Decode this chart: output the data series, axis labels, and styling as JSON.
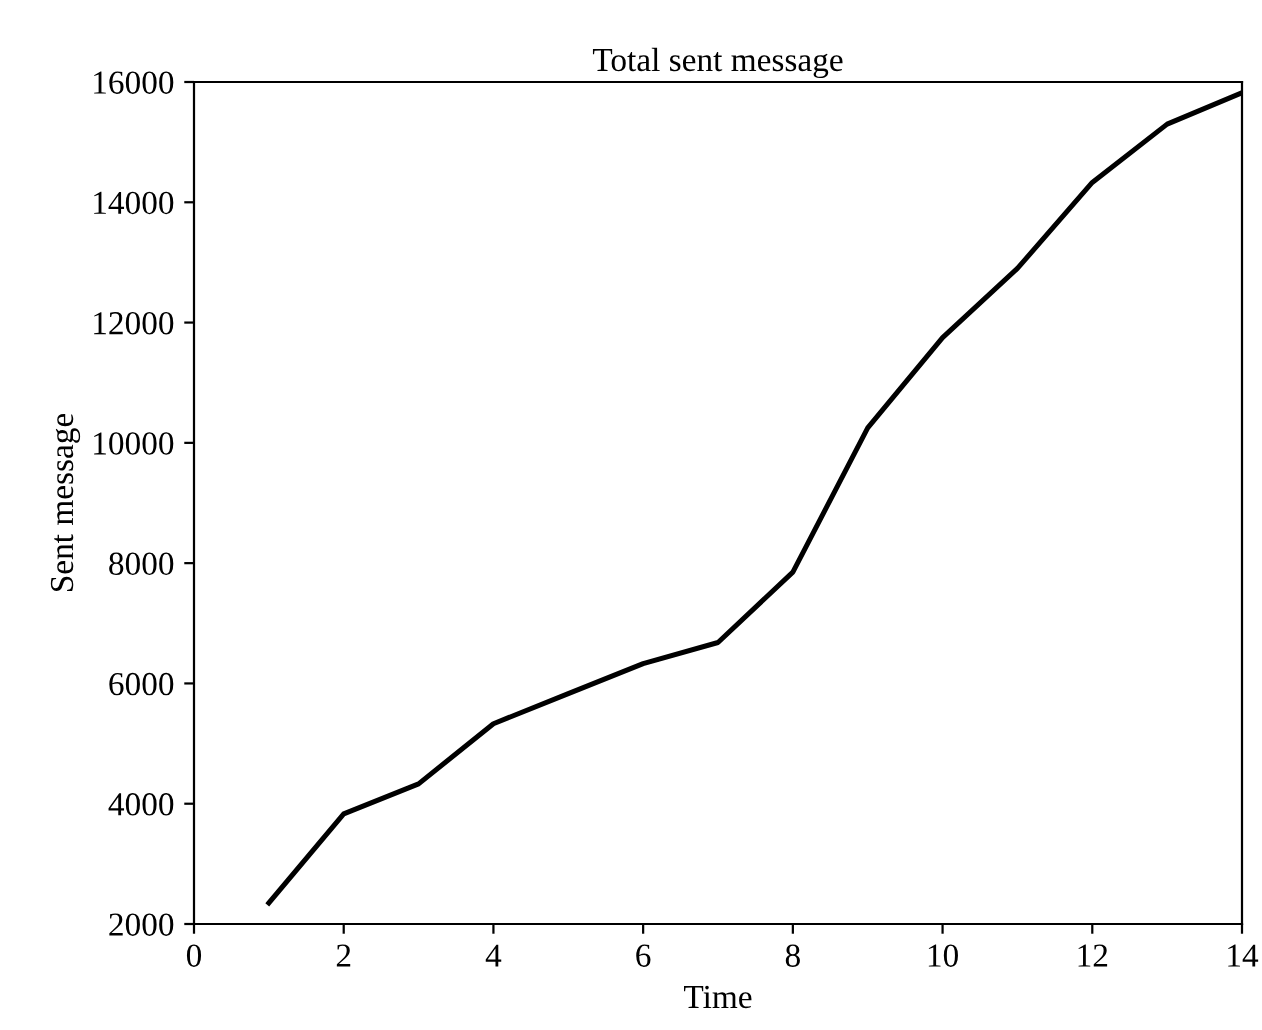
{
  "chart_data": {
    "type": "line",
    "title": "Total sent message",
    "xlabel": "Time",
    "ylabel": "Sent message",
    "x": [
      1,
      2,
      3,
      4,
      5,
      6,
      7,
      8,
      9,
      10,
      11,
      12,
      13,
      14
    ],
    "series": [
      {
        "color": "#000000",
        "values": [
          2350,
          3830,
          4330,
          5330,
          5830,
          6330,
          6680,
          7850,
          10250,
          11750,
          12900,
          14330,
          15300,
          15820
        ]
      }
    ],
    "xlim": [
      0,
      14
    ],
    "xticks": [
      0,
      2,
      4,
      6,
      8,
      10,
      12,
      14
    ],
    "ylim": [
      2000,
      16000
    ],
    "yticks": [
      2000,
      4000,
      6000,
      8000,
      10000,
      12000,
      14000,
      16000
    ],
    "grid": false,
    "legend": false
  }
}
